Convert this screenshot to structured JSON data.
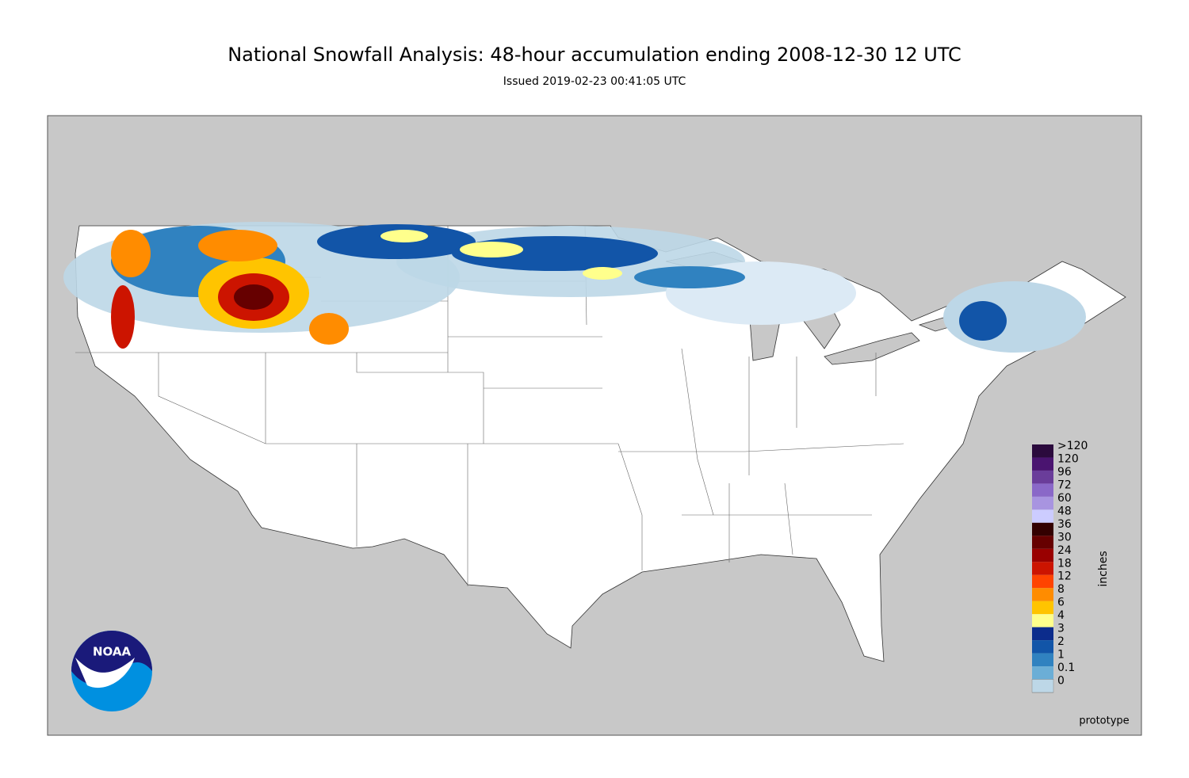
{
  "title": "National Snowfall Analysis: 48-hour accumulation ending 2008-12-30 12 UTC",
  "subtitle": "Issued 2019-02-23 00:41:05 UTC",
  "legend": {
    "unit": "inches",
    "entries": [
      {
        "label": ">120",
        "color": "#2b0a3d"
      },
      {
        "label": "120",
        "color": "#4a1470"
      },
      {
        "label": "96",
        "color": "#6a3d9a"
      },
      {
        "label": "72",
        "color": "#8a68c8"
      },
      {
        "label": "60",
        "color": "#a894e0"
      },
      {
        "label": "48",
        "color": "#ccccff"
      },
      {
        "label": "36",
        "color": "#330000"
      },
      {
        "label": "30",
        "color": "#660000"
      },
      {
        "label": "24",
        "color": "#990000"
      },
      {
        "label": "18",
        "color": "#cc1400"
      },
      {
        "label": "12",
        "color": "#ff4400"
      },
      {
        "label": "8",
        "color": "#ff8c00"
      },
      {
        "label": "6",
        "color": "#ffc400"
      },
      {
        "label": "4",
        "color": "#ffff8c"
      },
      {
        "label": "3",
        "color": "#0c2c8c"
      },
      {
        "label": "2",
        "color": "#1255a8"
      },
      {
        "label": "1",
        "color": "#3082c0"
      },
      {
        "label": "0.1",
        "color": "#6baed6"
      },
      {
        "label": "0",
        "color": "#bdd7e7"
      }
    ]
  },
  "logo": "NOAA",
  "footnote": "prototype"
}
